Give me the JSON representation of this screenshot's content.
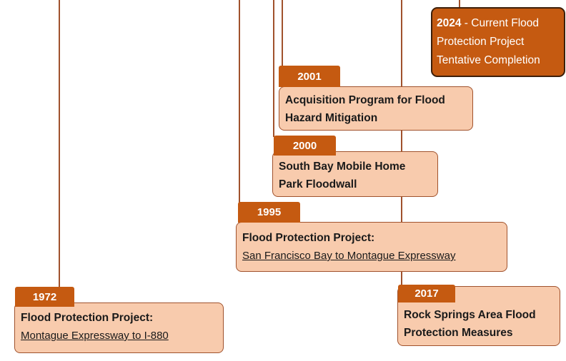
{
  "events": [
    {
      "year": "2024",
      "text_lines": [
        "- Current Flood",
        "Protection Project",
        "Tentative Completion"
      ]
    },
    {
      "year": "2001",
      "text_lines": [
        "Acquisition Program for Flood",
        "Hazard Mitigation"
      ]
    },
    {
      "year": "2000",
      "text_lines": [
        "South Bay Mobile Home",
        "Park Floodwall"
      ]
    },
    {
      "year": "1995",
      "text_lines": [
        "Flood Protection Project:"
      ],
      "link": "San Francisco Bay to Montague Expressway"
    },
    {
      "year": "2017",
      "text_lines": [
        "Rock Springs Area Flood",
        "Protection Measures"
      ]
    },
    {
      "year": "1972",
      "text_lines": [
        "Flood Protection Project:"
      ],
      "link": "Montague Expressway to I-880"
    }
  ]
}
